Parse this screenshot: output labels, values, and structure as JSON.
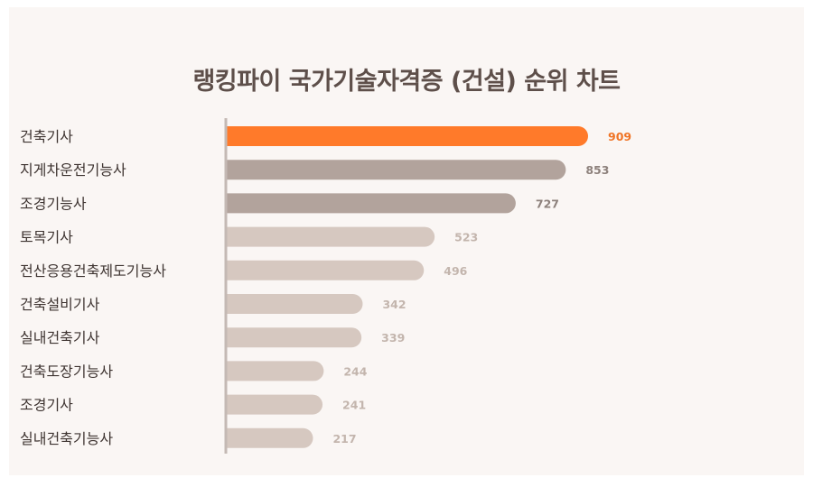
{
  "chart_data": {
    "type": "bar",
    "orientation": "horizontal",
    "title": "랭킹파이 국가기술자격증 (건설) 순위 차트",
    "categories": [
      "건축기사",
      "지게차운전기능사",
      "조경기능사",
      "토목기사",
      "전산응용건축제도기능사",
      "건축설비기사",
      "실내건축기사",
      "건축도장기능사",
      "조경기사",
      "실내건축기능사"
    ],
    "values": [
      909,
      853,
      727,
      523,
      496,
      342,
      339,
      244,
      241,
      217
    ],
    "xlabel": "",
    "ylabel": "",
    "xlim": [
      0,
      909
    ],
    "grid": false,
    "colors": {
      "highlight": "#ff7a2a",
      "top": "#b2a39c",
      "rest": "#d6c8c0",
      "highlight_label": "#f07425",
      "top_label": "#8d817c",
      "rest_label": "#c3b5ad",
      "axis": "#c4b9b4"
    }
  }
}
